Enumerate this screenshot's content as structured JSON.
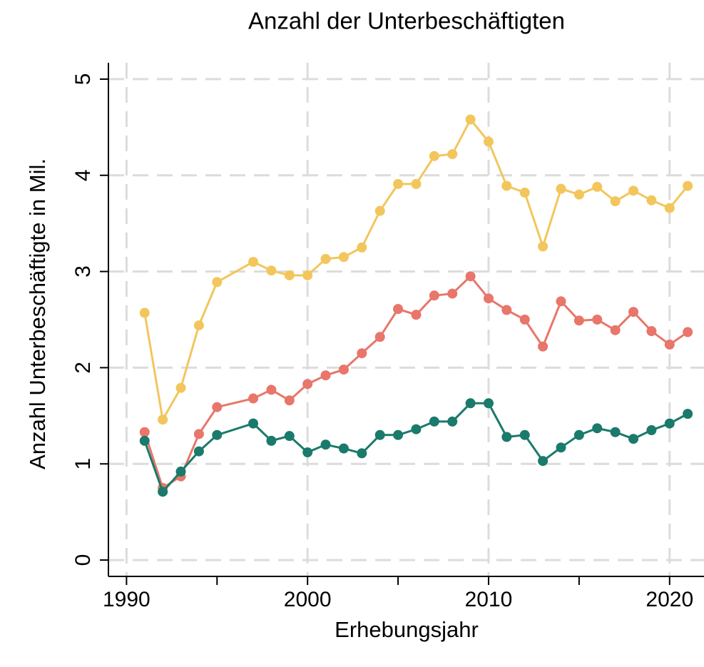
{
  "chart_data": {
    "type": "line",
    "title": "Anzahl der Unterbeschäftigten",
    "xlabel": "Erhebungsjahr",
    "ylabel": "Anzahl Unterbeschäftigte in Mil.",
    "x": [
      1991,
      1992,
      1993,
      1994,
      1995,
      1997,
      1998,
      1999,
      2000,
      2001,
      2002,
      2003,
      2004,
      2005,
      2006,
      2007,
      2008,
      2009,
      2010,
      2011,
      2012,
      2013,
      2014,
      2015,
      2016,
      2017,
      2018,
      2019,
      2020,
      2021
    ],
    "series": [
      {
        "color": "#f2c65c",
        "values": [
          2.57,
          1.46,
          1.79,
          2.44,
          2.89,
          3.1,
          3.01,
          2.96,
          2.96,
          3.13,
          3.15,
          3.25,
          3.63,
          3.91,
          3.91,
          4.2,
          4.22,
          4.58,
          4.35,
          3.89,
          3.82,
          3.26,
          3.86,
          3.8,
          3.88,
          3.73,
          3.84,
          3.74,
          3.66,
          3.89
        ]
      },
      {
        "color": "#e8766a",
        "values": [
          1.33,
          0.75,
          0.87,
          1.31,
          1.59,
          1.68,
          1.77,
          1.66,
          1.83,
          1.92,
          1.98,
          2.15,
          2.32,
          2.61,
          2.55,
          2.75,
          2.77,
          2.95,
          2.72,
          2.6,
          2.5,
          2.22,
          2.69,
          2.49,
          2.5,
          2.39,
          2.58,
          2.38,
          2.24,
          2.37
        ]
      },
      {
        "color": "#1a7a6b",
        "values": [
          1.24,
          0.71,
          0.92,
          1.13,
          1.3,
          1.42,
          1.24,
          1.29,
          1.12,
          1.2,
          1.16,
          1.11,
          1.3,
          1.3,
          1.36,
          1.44,
          1.44,
          1.63,
          1.63,
          1.28,
          1.3,
          1.03,
          1.17,
          1.3,
          1.37,
          1.33,
          1.26,
          1.35,
          1.42,
          1.52
        ]
      }
    ],
    "xlim": [
      1989,
      2021.9
    ],
    "ylim": [
      -0.17,
      5.17
    ],
    "xticks": [
      1990,
      2000,
      2010,
      2020
    ],
    "xminorticks": [
      1995,
      2005,
      2015
    ],
    "yticks": [
      0,
      1,
      2,
      3,
      4,
      5
    ],
    "grid": true
  }
}
